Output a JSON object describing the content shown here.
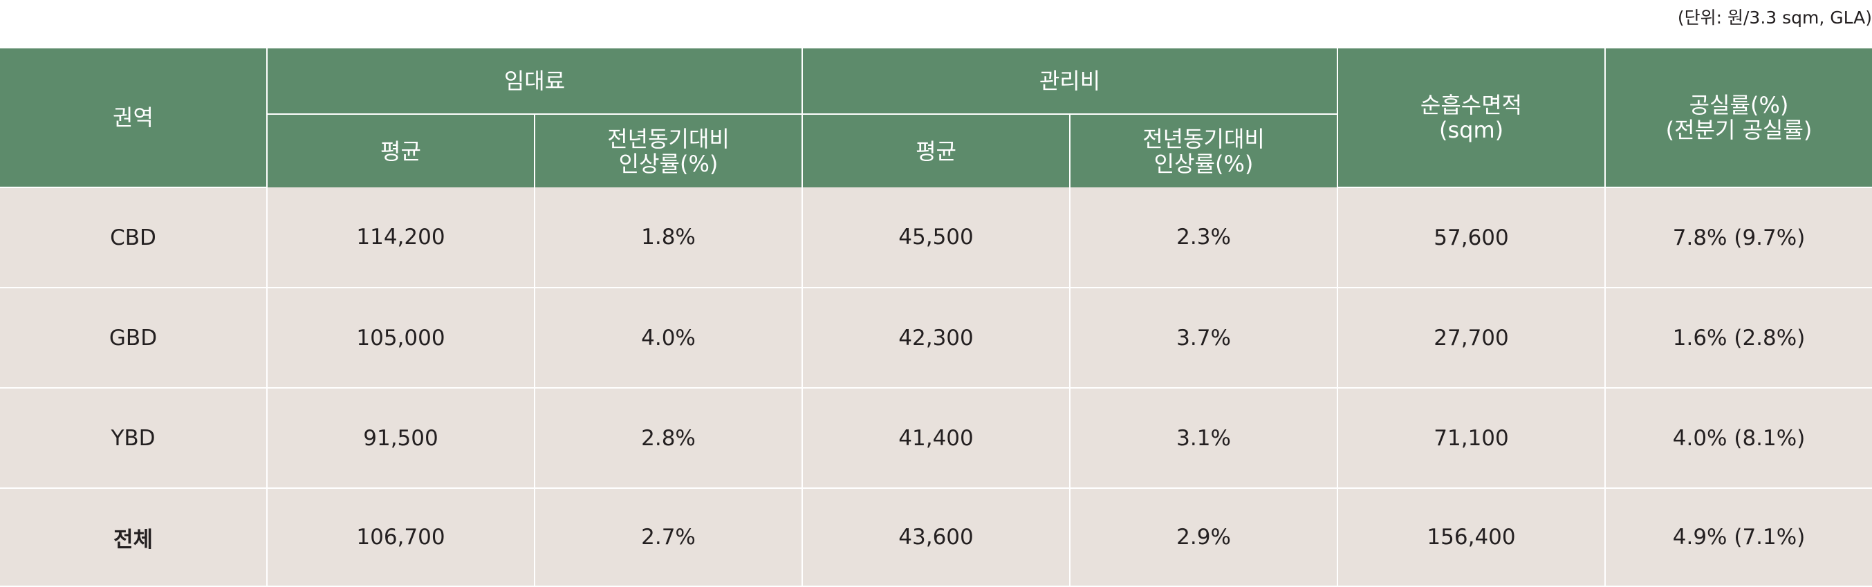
{
  "unit_note": "(단위: 원/3.3 sqm, GLA)",
  "header": {
    "region": "권역",
    "rent_group": "임대료",
    "mgmt_group": "관리비",
    "nla": "순흡수면적\n(sqm)",
    "vacancy": "공실률(%)\n(전분기 공실률)",
    "rent_avg": "평균",
    "rent_yoy": "전년동기대비\n인상률(%)",
    "mgmt_avg": "평균",
    "mgmt_yoy": "전년동기대비\n인상률(%)"
  },
  "rows": [
    {
      "region": "CBD",
      "rent_avg": "114,200",
      "rent_yoy": "1.8%",
      "mgmt_avg": "45,500",
      "mgmt_yoy": "2.3%",
      "nla": "57,600",
      "vacancy": "7.8% (9.7%)"
    },
    {
      "region": "GBD",
      "rent_avg": "105,000",
      "rent_yoy": "4.0%",
      "mgmt_avg": "42,300",
      "mgmt_yoy": "3.7%",
      "nla": "27,700",
      "vacancy": "1.6% (2.8%)"
    },
    {
      "region": "YBD",
      "rent_avg": "91,500",
      "rent_yoy": "2.8%",
      "mgmt_avg": "41,400",
      "mgmt_yoy": "3.1%",
      "nla": "71,100",
      "vacancy": "4.0% (8.1%)"
    },
    {
      "region": "전체",
      "rent_avg": "106,700",
      "rent_yoy": "2.7%",
      "mgmt_avg": "43,600",
      "mgmt_yoy": "2.9%",
      "nla": "156,400",
      "vacancy": "4.9% (7.1%)"
    }
  ],
  "colors": {
    "header_bg": "#5d8b6b",
    "body_bg": "#e8e1dc",
    "text": "#231f20"
  }
}
